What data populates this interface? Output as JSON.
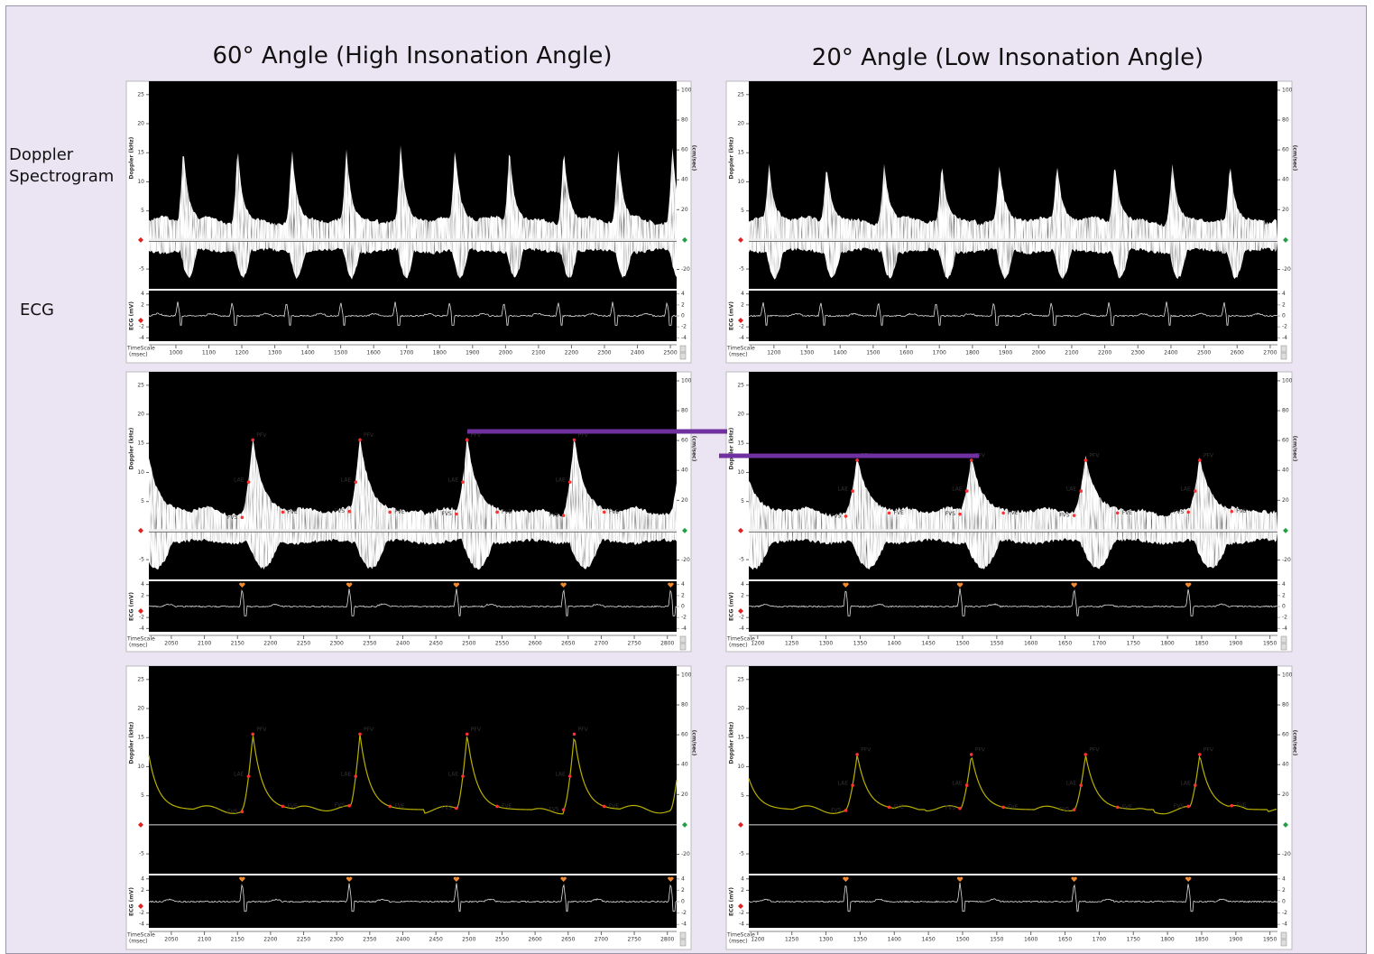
{
  "columns": [
    {
      "title": "60° Angle (High Insonation Angle)"
    },
    {
      "title": "20° Angle (Low Insonation Angle)"
    }
  ],
  "row_labels": [
    "Doppler Spectrogram",
    "ECG"
  ],
  "axis_labels": {
    "doppler": "Doppler (kHz)",
    "velocity": "(cm/sec)",
    "ecg": "ECG (mV)",
    "timescale": "TimeScale",
    "timescale_unit": "(msec)"
  },
  "doppler_ylim": [
    -8.4,
    27.3
  ],
  "doppler_yticks": [
    25,
    20,
    15,
    10,
    5,
    -5
  ],
  "velocity_ylim": [
    -33,
    106
  ],
  "velocity_yticks": [
    100,
    80,
    60,
    40,
    20,
    -20
  ],
  "ecg_ylim": [
    -4.6,
    4.6
  ],
  "ecg_yticks": [
    4,
    2,
    -2,
    -4
  ],
  "ecg_y2ticks": [
    4,
    2,
    0,
    -2,
    -4
  ],
  "peak_labels": [
    "PFV",
    "LAE",
    "FVS",
    "FVE"
  ],
  "panels": [
    {
      "xlim": [
        918,
        2519
      ],
      "xticks": [
        1000,
        1100,
        1200,
        1300,
        1400,
        1500,
        1600,
        1700,
        1800,
        1900,
        2000,
        2100,
        2200,
        2300,
        2400,
        2500
      ]
    },
    {
      "xlim": [
        1124,
        2722
      ],
      "xticks": [
        1200,
        1300,
        1400,
        1500,
        1600,
        1700,
        1800,
        1900,
        2000,
        2100,
        2200,
        2300,
        2400,
        2500,
        2600,
        2700
      ]
    },
    {
      "xlim": [
        2016,
        2814
      ],
      "xticks": [
        2050,
        2100,
        2150,
        2200,
        2250,
        2300,
        2350,
        2400,
        2450,
        2500,
        2550,
        2600,
        2650,
        2700,
        2750,
        2800
      ]
    },
    {
      "xlim": [
        1187,
        1961
      ],
      "xticks": [
        1200,
        1250,
        1300,
        1350,
        1400,
        1450,
        1500,
        1550,
        1600,
        1650,
        1700,
        1750,
        1800,
        1850,
        1900,
        1950
      ]
    },
    {
      "xlim": [
        2016,
        2814
      ],
      "xticks": [
        2050,
        2100,
        2150,
        2200,
        2250,
        2300,
        2350,
        2400,
        2450,
        2500,
        2550,
        2600,
        2650,
        2700,
        2750,
        2800
      ]
    },
    {
      "xlim": [
        1187,
        1961
      ],
      "xticks": [
        1200,
        1250,
        1300,
        1350,
        1400,
        1450,
        1500,
        1550,
        1600,
        1650,
        1700,
        1750,
        1800,
        1850,
        1900,
        1950
      ]
    }
  ]
}
